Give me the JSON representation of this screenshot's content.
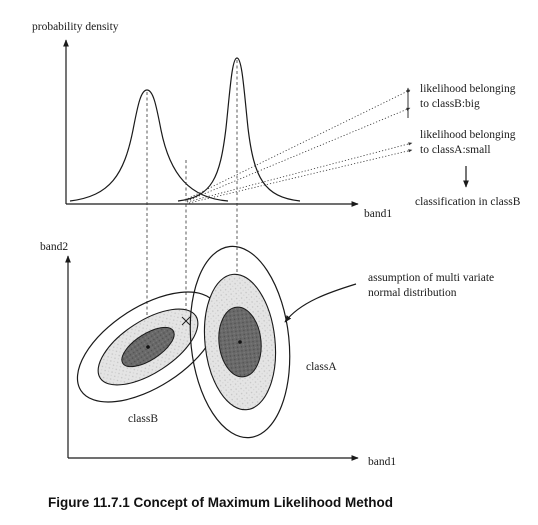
{
  "top_plot": {
    "y_axis_label": "probability density",
    "x_axis_label": "band1"
  },
  "annotations": {
    "likelihood_b_line1": "likelihood belonging",
    "likelihood_b_line2": "to classB:big",
    "likelihood_a_line1": "likelihood belonging",
    "likelihood_a_line2": "to classA:small",
    "decision": "classification in classB",
    "assumption_line1": "assumption of multi variate",
    "assumption_line2": "normal distribution"
  },
  "bottom_plot": {
    "y_axis_label": "band2",
    "x_axis_label": "band1",
    "class_a_label": "classA",
    "class_b_label": "classB"
  },
  "caption": "Figure 11.7.1 Concept of Maximum Likelihood Method"
}
